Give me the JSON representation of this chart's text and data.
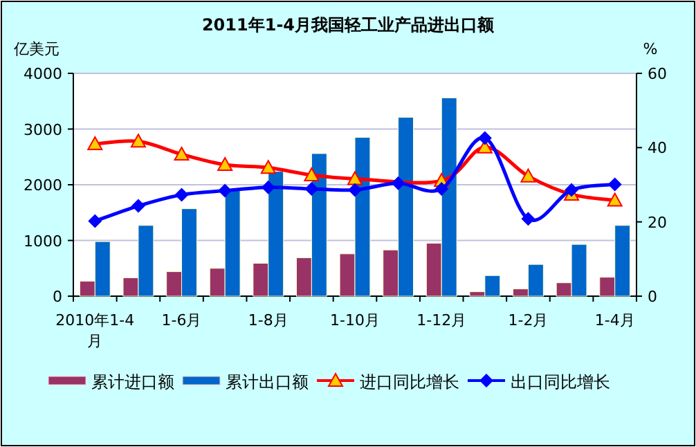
{
  "chart_data": {
    "type": "bar",
    "title": "2011年1-4月我国轻工业产品进出口额",
    "ylabel": "亿美元",
    "y2label": "%",
    "categories": [
      "2010年1-4月",
      null,
      "1-6月",
      null,
      "1-8月",
      null,
      "1-10月",
      null,
      "1-12月",
      null,
      "1-2月",
      null,
      "1-4月"
    ],
    "series": [
      {
        "name": "累计进口额",
        "color": "#993366",
        "values": [
          270,
          330,
          440,
          500,
          590,
          690,
          760,
          830,
          950,
          80,
          130,
          240,
          340
        ]
      },
      {
        "name": "累计出口额",
        "color": "#0066cc",
        "values": [
          980,
          1270,
          1570,
          1900,
          2240,
          2560,
          2850,
          3210,
          3560,
          370,
          570,
          930,
          1270
        ]
      },
      {
        "name": "进口同比增长",
        "type": "line",
        "axis": "y2",
        "color": "#ff0000",
        "marker": "triangle",
        "values": [
          41.0,
          41.7,
          38.2,
          35.4,
          34.6,
          32.6,
          31.6,
          null,
          31.1,
          40.1,
          32.3,
          27.4,
          25.8
        ]
      },
      {
        "name": "出口同比增长",
        "type": "line",
        "axis": "y2",
        "color": "#0000ff",
        "marker": "diamond",
        "values": [
          20.2,
          24.3,
          27.3,
          28.4,
          29.3,
          28.9,
          28.6,
          30.4,
          28.9,
          42.6,
          20.8,
          28.6,
          30.1
        ]
      }
    ],
    "ylim": [
      0,
      4000
    ],
    "yticks": [
      0,
      1000,
      2000,
      3000,
      4000
    ],
    "y2lim": [
      0,
      60
    ],
    "y2ticks": [
      0,
      20,
      40,
      60
    ],
    "grid": "y",
    "legend": "bottom"
  }
}
